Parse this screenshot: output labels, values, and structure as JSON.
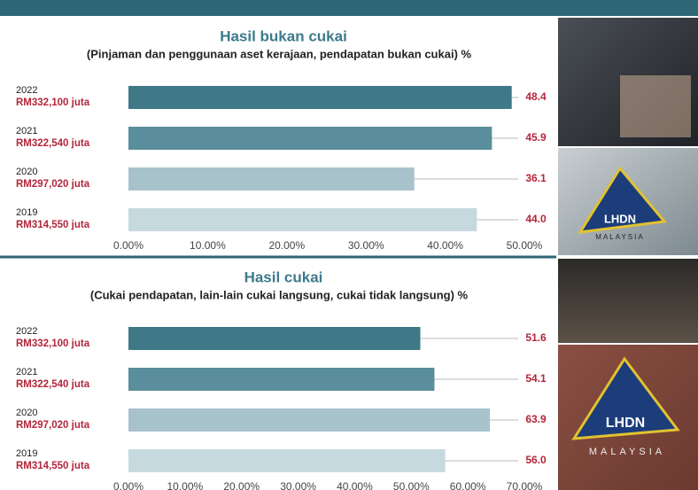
{
  "chart_data": [
    {
      "type": "bar",
      "orientation": "horizontal",
      "title": "Hasil bukan cukai",
      "subtitle": "(Pinjaman dan penggunaan aset kerajaan, pendapatan bukan cukai) %",
      "categories": [
        "2022",
        "2021",
        "2020",
        "2019"
      ],
      "category_amounts": [
        "RM332,100 juta",
        "RM322,540 juta",
        "RM297,020 juta",
        "RM314,550 juta"
      ],
      "values": [
        48.4,
        45.9,
        36.1,
        44.0
      ],
      "value_labels": [
        "48.4",
        "45.9",
        "36.1",
        "44.0"
      ],
      "colors": [
        "#3f7886",
        "#5a8e9c",
        "#a8c2cb",
        "#c6d9df"
      ],
      "xlim": [
        0,
        50
      ],
      "xticks": [
        {
          "value": 0,
          "label": "0.00%"
        },
        {
          "value": 10,
          "label": "10.00%"
        },
        {
          "value": 20,
          "label": "20.00%"
        },
        {
          "value": 30,
          "label": "30.00%"
        },
        {
          "value": 40,
          "label": "40.00%"
        },
        {
          "value": 50,
          "label": "50.00%"
        }
      ]
    },
    {
      "type": "bar",
      "orientation": "horizontal",
      "title": "Hasil cukai",
      "subtitle": "(Cukai pendapatan, lain-lain cukai langsung, cukai tidak langsung) %",
      "categories": [
        "2022",
        "2021",
        "2020",
        "2019"
      ],
      "category_amounts": [
        "RM332,100 juta",
        "RM322,540 juta",
        "RM297,020 juta",
        "RM314,550 juta"
      ],
      "values": [
        51.6,
        54.1,
        63.9,
        56.0
      ],
      "value_labels": [
        "51.6",
        "54.1",
        "63.9",
        "56.0"
      ],
      "colors": [
        "#3f7886",
        "#5a8e9c",
        "#a8c2cb",
        "#c6d9df"
      ],
      "xlim": [
        0,
        70
      ],
      "xticks": [
        {
          "value": 0,
          "label": "0.00%"
        },
        {
          "value": 10,
          "label": "10.00%"
        },
        {
          "value": 20,
          "label": "20.00%"
        },
        {
          "value": 30,
          "label": "30.00%"
        },
        {
          "value": 40,
          "label": "40.00%"
        },
        {
          "value": 50,
          "label": "50.00%"
        },
        {
          "value": 60,
          "label": "60.00%"
        },
        {
          "value": 70,
          "label": "70.00%"
        }
      ]
    }
  ],
  "photos": [
    {
      "logo": "LHDN",
      "caption": "MALAYSIA"
    },
    {
      "logo": "LHDN",
      "caption": "MALAYSIA"
    }
  ]
}
